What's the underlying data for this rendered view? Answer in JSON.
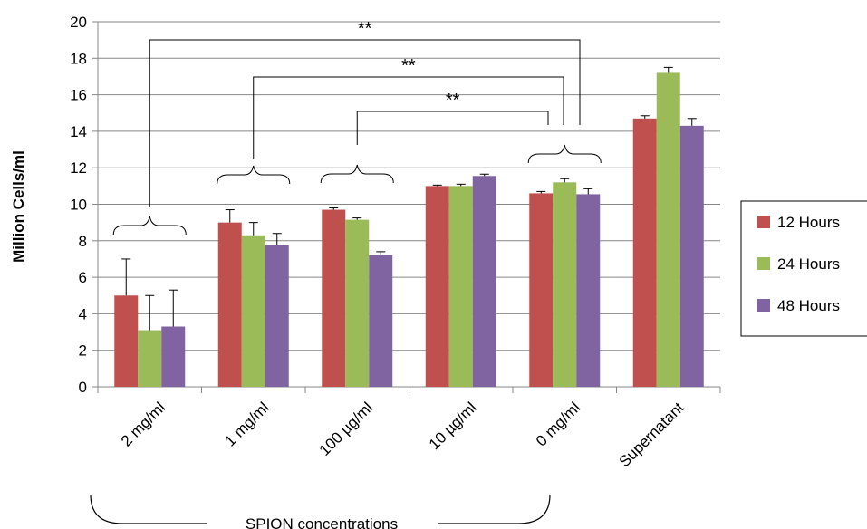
{
  "chart_data": {
    "type": "bar",
    "title": "",
    "xlabel": "",
    "ylabel": "Million Cells/ml",
    "ylim": [
      0,
      20
    ],
    "yticks": [
      0,
      2,
      4,
      6,
      8,
      10,
      12,
      14,
      16,
      18,
      20
    ],
    "grid": true,
    "legend_position": "right",
    "categories": [
      "2 mg/ml",
      "1 mg/ml",
      "100 µg/ml",
      "10 µg/ml",
      "0 mg/ml",
      "Supernatant"
    ],
    "series": [
      {
        "name": "12 Hours",
        "color": "#C0504D",
        "values": [
          5.0,
          9.0,
          9.7,
          11.0,
          10.6,
          14.7
        ],
        "errors": [
          2.0,
          0.7,
          0.1,
          0.05,
          0.1,
          0.15
        ]
      },
      {
        "name": "24 Hours",
        "color": "#9BBB59",
        "values": [
          3.1,
          8.3,
          9.15,
          11.0,
          11.2,
          17.2
        ],
        "errors": [
          1.9,
          0.7,
          0.1,
          0.1,
          0.2,
          0.3
        ]
      },
      {
        "name": "48 Hours",
        "color": "#8064A2",
        "values": [
          3.3,
          7.75,
          7.2,
          11.55,
          10.55,
          14.3
        ],
        "errors": [
          2.0,
          0.65,
          0.2,
          0.1,
          0.3,
          0.4
        ]
      }
    ],
    "annotations": [
      {
        "text": "**",
        "from": "2 mg/ml",
        "to": "0 mg/ml"
      },
      {
        "text": "**",
        "from": "1 mg/ml",
        "to": "0 mg/ml"
      },
      {
        "text": "**",
        "from": "100 µg/ml",
        "to": "0 mg/ml"
      }
    ],
    "group_label": "SPION concentrations"
  }
}
